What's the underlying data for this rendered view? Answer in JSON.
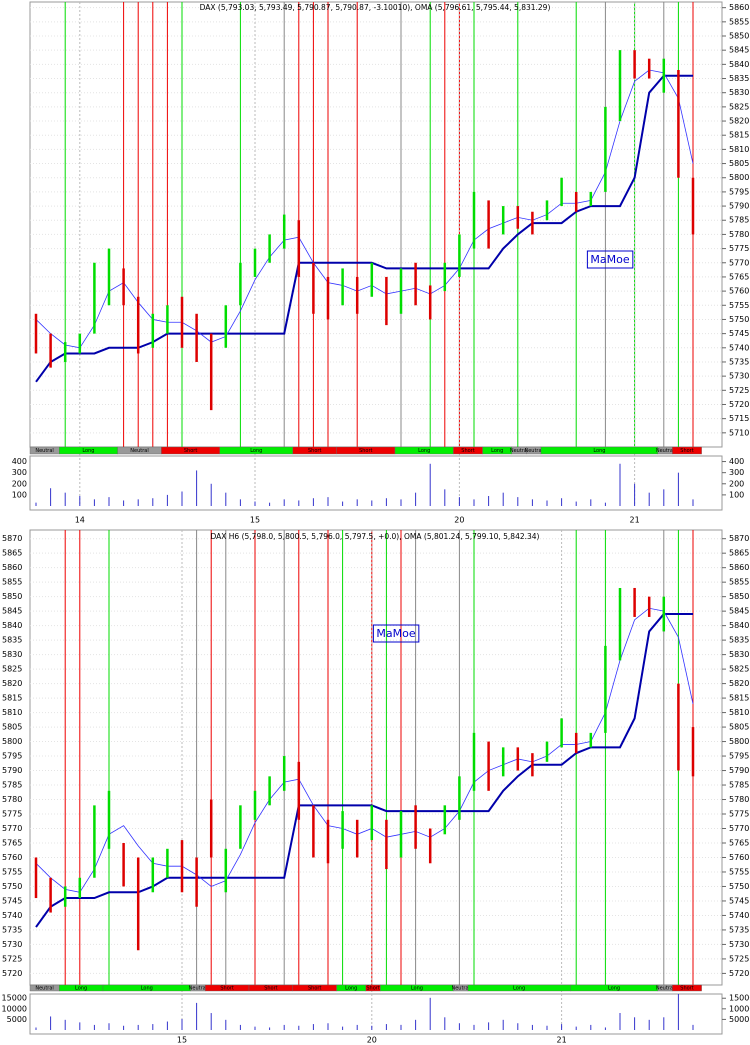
{
  "chart_data": [
    {
      "type": "ohlc",
      "title": "DAX (5,793.03, 5,793.49, 5,790.87, 5,790.87, -3.10010), OMA (5,796.61, 5,795.44, 5,831.29)",
      "annotation": "MaMoe",
      "ylim": [
        5705,
        5862
      ],
      "yticks": [
        5710,
        5715,
        5720,
        5725,
        5730,
        5735,
        5740,
        5745,
        5750,
        5755,
        5760,
        5765,
        5770,
        5775,
        5780,
        5785,
        5790,
        5795,
        5800,
        5805,
        5810,
        5815,
        5820,
        5825,
        5830,
        5835,
        5840,
        5845,
        5850,
        5855,
        5860
      ],
      "categories": [
        null,
        null,
        null,
        "14",
        null,
        null,
        null,
        null,
        null,
        null,
        null,
        null,
        null,
        null,
        null,
        "15",
        null,
        null,
        null,
        null,
        null,
        null,
        null,
        null,
        null,
        null,
        null,
        null,
        null,
        "20",
        null,
        null,
        null,
        null,
        null,
        null,
        null,
        null,
        null,
        null,
        null,
        "21",
        null,
        null,
        null,
        null
      ],
      "lows": [
        5738,
        5733,
        5735,
        5738,
        5745,
        5755,
        5755,
        5738,
        5740,
        5745,
        5740,
        5735,
        5718,
        5740,
        5755,
        5765,
        5770,
        5775,
        5765,
        5752,
        5750,
        5755,
        5752,
        5758,
        5748,
        5752,
        5755,
        5750,
        5760,
        5765,
        5775,
        5775,
        5780,
        5782,
        5780,
        5785,
        5790,
        5788,
        5790,
        5795,
        5820,
        5835,
        5835,
        5830,
        5800,
        5780
      ],
      "highs": [
        5752,
        5745,
        5742,
        5745,
        5770,
        5775,
        5768,
        5758,
        5752,
        5755,
        5758,
        5752,
        5745,
        5755,
        5770,
        5775,
        5780,
        5787,
        5785,
        5770,
        5765,
        5768,
        5765,
        5770,
        5765,
        5768,
        5770,
        5762,
        5770,
        5780,
        5795,
        5792,
        5790,
        5790,
        5788,
        5792,
        5800,
        5795,
        5795,
        5825,
        5845,
        5845,
        5842,
        5842,
        5838,
        5800
      ],
      "direction": [
        "down",
        "down",
        "up",
        "up",
        "up",
        "up",
        "down",
        "down",
        "up",
        "up",
        "down",
        "down",
        "down",
        "up",
        "up",
        "up",
        "up",
        "up",
        "down",
        "down",
        "down",
        "up",
        "down",
        "up",
        "down",
        "up",
        "down",
        "down",
        "up",
        "up",
        "up",
        "down",
        "up",
        "down",
        "down",
        "up",
        "up",
        "down",
        "up",
        "up",
        "up",
        "down",
        "down",
        "up",
        "down",
        "down"
      ],
      "up_color": "#00dd00",
      "down_color": "#dd0000",
      "fast": [
        5750,
        5745,
        5741,
        5740,
        5748,
        5760,
        5763,
        5756,
        5750,
        5749,
        5749,
        5746,
        5742,
        5744,
        5753,
        5764,
        5772,
        5778,
        5779,
        5770,
        5763,
        5762,
        5760,
        5762,
        5759,
        5760,
        5761,
        5759,
        5762,
        5768,
        5778,
        5782,
        5784,
        5786,
        5785,
        5787,
        5791,
        5791,
        5792,
        5802,
        5820,
        5834,
        5838,
        5837,
        5828,
        5805
      ],
      "fast_color": "#3333ff",
      "stop": [
        5728,
        5735,
        5738,
        5738,
        5738,
        5740,
        5740,
        5740,
        5742,
        5745,
        5745,
        5745,
        5745,
        5745,
        5745,
        5745,
        5745,
        5745,
        5770,
        5770,
        5770,
        5770,
        5770,
        5770,
        5768,
        5768,
        5768,
        5768,
        5768,
        5768,
        5768,
        5768,
        5775,
        5780,
        5784,
        5784,
        5784,
        5788,
        5790,
        5790,
        5790,
        5800,
        5830,
        5836,
        5836,
        5836
      ],
      "stop_color": "#0000aa",
      "markers": [
        {
          "at": 2,
          "color": "#00dd00"
        },
        {
          "at": 6,
          "color": "#ee0000"
        },
        {
          "at": 7,
          "color": "#ee0000"
        },
        {
          "at": 8,
          "color": "#ee0000"
        },
        {
          "at": 9,
          "color": "#ee0000"
        },
        {
          "at": 10,
          "color": "#00dd00"
        },
        {
          "at": 14,
          "color": "#00dd00"
        },
        {
          "at": 17,
          "color": "#888888"
        },
        {
          "at": 18,
          "color": "#ee0000"
        },
        {
          "at": 19,
          "color": "#ee0000"
        },
        {
          "at": 20,
          "color": "#ee0000"
        },
        {
          "at": 22,
          "color": "#ee0000"
        },
        {
          "at": 25,
          "color": "#888888"
        },
        {
          "at": 27,
          "color": "#00dd00"
        },
        {
          "at": 28,
          "color": "#ee0000"
        },
        {
          "at": 29,
          "color": "#ee0000"
        },
        {
          "at": 30,
          "color": "#00dd00"
        },
        {
          "at": 33,
          "color": "#00dd00"
        },
        {
          "at": 37,
          "color": "#00dd00"
        },
        {
          "at": 39,
          "color": "#888888"
        },
        {
          "at": 41,
          "color": "#00dd00"
        },
        {
          "at": 43,
          "color": "#888888"
        },
        {
          "at": 44,
          "color": "#00dd00"
        },
        {
          "at": 45,
          "color": "#ee0000"
        }
      ],
      "segments": [
        {
          "label": "Neutral",
          "from": 0,
          "to": 2,
          "color": "#999999"
        },
        {
          "label": "Long",
          "from": 2,
          "to": 6,
          "color": "#00ee00"
        },
        {
          "label": "Neutral",
          "from": 6,
          "to": 9,
          "color": "#999999"
        },
        {
          "label": "Short",
          "from": 9,
          "to": 13,
          "color": "#ee0000"
        },
        {
          "label": "Long",
          "from": 13,
          "to": 18,
          "color": "#00ee00"
        },
        {
          "label": "Short",
          "from": 18,
          "to": 21,
          "color": "#ee0000"
        },
        {
          "label": "Short",
          "from": 21,
          "to": 25,
          "color": "#ee0000"
        },
        {
          "label": "Long",
          "from": 25,
          "to": 29,
          "color": "#00ee00"
        },
        {
          "label": "Short",
          "from": 29,
          "to": 31,
          "color": "#ee0000"
        },
        {
          "label": "Long",
          "from": 31,
          "to": 33,
          "color": "#00ee00"
        },
        {
          "label": "Neutral",
          "from": 33,
          "to": 34,
          "color": "#999999"
        },
        {
          "label": "Neutral",
          "from": 34,
          "to": 35,
          "color": "#999999"
        },
        {
          "label": "Long",
          "from": 35,
          "to": 43,
          "color": "#00ee00"
        },
        {
          "label": "Neutral",
          "from": 43,
          "to": 44,
          "color": "#999999"
        },
        {
          "label": "Short",
          "from": 44,
          "to": 46,
          "color": "#ee0000"
        }
      ],
      "volume": {
        "values": [
          30,
          160,
          120,
          90,
          60,
          80,
          50,
          60,
          70,
          100,
          130,
          320,
          200,
          120,
          60,
          40,
          30,
          60,
          50,
          70,
          80,
          40,
          60,
          50,
          70,
          60,
          120,
          380,
          150,
          80,
          60,
          90,
          120,
          80,
          60,
          50,
          70,
          40,
          60,
          30,
          380,
          200,
          120,
          150,
          300,
          60
        ],
        "color": "#3333cc",
        "ylim": [
          0,
          450
        ],
        "yticks": [
          100,
          200,
          300,
          400
        ]
      }
    },
    {
      "type": "ohlc",
      "title": "DAX H6 (5,798.0, 5,800.5, 5,796.0, 5,797.5, +0.0), OMA (5,801.24, 5,799.10, 5,842.34)",
      "annotation": "MaMoe",
      "ylim": [
        5716,
        5873
      ],
      "yticks": [
        5720,
        5725,
        5730,
        5735,
        5740,
        5745,
        5750,
        5755,
        5760,
        5765,
        5770,
        5775,
        5780,
        5785,
        5790,
        5795,
        5800,
        5805,
        5810,
        5815,
        5820,
        5825,
        5830,
        5835,
        5840,
        5845,
        5850,
        5855,
        5860,
        5865,
        5870
      ],
      "categories": [
        null,
        null,
        null,
        null,
        null,
        null,
        null,
        null,
        null,
        null,
        "15",
        null,
        null,
        null,
        null,
        null,
        null,
        null,
        null,
        null,
        null,
        null,
        null,
        "20",
        null,
        null,
        null,
        null,
        null,
        null,
        null,
        null,
        null,
        null,
        null,
        null,
        "21",
        null,
        null,
        null,
        null,
        null,
        null,
        null,
        null,
        null
      ],
      "lows": [
        5746,
        5741,
        5743,
        5746,
        5753,
        5763,
        5750,
        5728,
        5748,
        5753,
        5748,
        5743,
        5760,
        5748,
        5763,
        5773,
        5778,
        5783,
        5773,
        5760,
        5758,
        5763,
        5760,
        5766,
        5756,
        5760,
        5763,
        5758,
        5768,
        5773,
        5783,
        5783,
        5788,
        5790,
        5788,
        5793,
        5798,
        5796,
        5798,
        5803,
        5828,
        5843,
        5843,
        5838,
        5790,
        5788
      ],
      "highs": [
        5760,
        5753,
        5750,
        5753,
        5778,
        5783,
        5765,
        5760,
        5760,
        5763,
        5766,
        5760,
        5780,
        5763,
        5778,
        5783,
        5788,
        5795,
        5793,
        5778,
        5773,
        5776,
        5773,
        5778,
        5773,
        5776,
        5778,
        5770,
        5778,
        5788,
        5803,
        5800,
        5798,
        5798,
        5796,
        5800,
        5808,
        5803,
        5803,
        5833,
        5853,
        5853,
        5850,
        5850,
        5820,
        5805
      ],
      "direction": [
        "down",
        "down",
        "up",
        "up",
        "up",
        "up",
        "down",
        "down",
        "up",
        "up",
        "down",
        "down",
        "down",
        "up",
        "up",
        "up",
        "up",
        "up",
        "down",
        "down",
        "down",
        "up",
        "down",
        "up",
        "down",
        "up",
        "down",
        "down",
        "up",
        "up",
        "up",
        "down",
        "up",
        "down",
        "down",
        "up",
        "up",
        "down",
        "up",
        "up",
        "up",
        "down",
        "down",
        "up",
        "down",
        "down"
      ],
      "up_color": "#00dd00",
      "down_color": "#dd0000",
      "fast": [
        5758,
        5753,
        5749,
        5748,
        5756,
        5768,
        5771,
        5764,
        5758,
        5757,
        5757,
        5754,
        5750,
        5752,
        5761,
        5772,
        5780,
        5786,
        5787,
        5778,
        5771,
        5770,
        5768,
        5770,
        5767,
        5768,
        5769,
        5767,
        5770,
        5776,
        5786,
        5790,
        5792,
        5794,
        5793,
        5795,
        5799,
        5799,
        5800,
        5810,
        5828,
        5842,
        5846,
        5845,
        5836,
        5813
      ],
      "fast_color": "#3333ff",
      "stop": [
        5736,
        5743,
        5746,
        5746,
        5746,
        5748,
        5748,
        5748,
        5750,
        5753,
        5753,
        5753,
        5753,
        5753,
        5753,
        5753,
        5753,
        5753,
        5778,
        5778,
        5778,
        5778,
        5778,
        5778,
        5776,
        5776,
        5776,
        5776,
        5776,
        5776,
        5776,
        5776,
        5783,
        5788,
        5792,
        5792,
        5792,
        5796,
        5798,
        5798,
        5798,
        5808,
        5838,
        5844,
        5844,
        5844
      ],
      "stop_color": "#0000aa",
      "markers": [
        {
          "at": 2,
          "color": "#ee0000"
        },
        {
          "at": 3,
          "color": "#ee0000"
        },
        {
          "at": 5,
          "color": "#00dd00"
        },
        {
          "at": 11,
          "color": "#888888"
        },
        {
          "at": 12,
          "color": "#ee0000"
        },
        {
          "at": 13,
          "color": "#888888"
        },
        {
          "at": 15,
          "color": "#ee0000"
        },
        {
          "at": 17,
          "color": "#888888"
        },
        {
          "at": 18,
          "color": "#ee0000"
        },
        {
          "at": 20,
          "color": "#ee0000"
        },
        {
          "at": 21,
          "color": "#00dd00"
        },
        {
          "at": 23,
          "color": "#ee0000"
        },
        {
          "at": 24,
          "color": "#00dd00"
        },
        {
          "at": 25,
          "color": "#ee0000"
        },
        {
          "at": 26,
          "color": "#888888"
        },
        {
          "at": 29,
          "color": "#888888"
        },
        {
          "at": 30,
          "color": "#00dd00"
        },
        {
          "at": 37,
          "color": "#00dd00"
        },
        {
          "at": 39,
          "color": "#00dd00"
        },
        {
          "at": 43,
          "color": "#888888"
        },
        {
          "at": 44,
          "color": "#00dd00"
        },
        {
          "at": 45,
          "color": "#ee0000"
        }
      ],
      "segments": [
        {
          "label": "Neutral",
          "from": 0,
          "to": 2,
          "color": "#999999"
        },
        {
          "label": "Long",
          "from": 2,
          "to": 5,
          "color": "#00ee00"
        },
        {
          "label": "Long",
          "from": 5,
          "to": 11,
          "color": "#00ee00"
        },
        {
          "label": "Neutral",
          "from": 11,
          "to": 12,
          "color": "#999999"
        },
        {
          "label": "Short",
          "from": 12,
          "to": 15,
          "color": "#ee0000"
        },
        {
          "label": "Short",
          "from": 15,
          "to": 18,
          "color": "#ee0000"
        },
        {
          "label": "Short",
          "from": 18,
          "to": 21,
          "color": "#ee0000"
        },
        {
          "label": "Long",
          "from": 21,
          "to": 23,
          "color": "#00ee00"
        },
        {
          "label": "Short",
          "from": 23,
          "to": 24,
          "color": "#ee0000"
        },
        {
          "label": "Long",
          "from": 24,
          "to": 29,
          "color": "#00ee00"
        },
        {
          "label": "Neutral",
          "from": 29,
          "to": 30,
          "color": "#999999"
        },
        {
          "label": "Long",
          "from": 30,
          "to": 37,
          "color": "#00ee00"
        },
        {
          "label": "Long",
          "from": 37,
          "to": 43,
          "color": "#00ee00"
        },
        {
          "label": "Neutral",
          "from": 43,
          "to": 44,
          "color": "#999999"
        },
        {
          "label": "Short",
          "from": 44,
          "to": 46,
          "color": "#ee0000"
        }
      ],
      "volume": {
        "values": [
          1200,
          6400,
          4800,
          3600,
          2400,
          3200,
          2000,
          2400,
          2800,
          4000,
          5200,
          12800,
          8000,
          4800,
          2400,
          1600,
          1200,
          2400,
          2000,
          2800,
          3200,
          1600,
          2400,
          2000,
          2800,
          2400,
          4800,
          15200,
          6000,
          3200,
          2400,
          3600,
          4800,
          3200,
          2400,
          2000,
          2800,
          1600,
          2400,
          1200,
          8000,
          6000,
          4800,
          6000,
          17000,
          2400
        ],
        "color": "#3333cc",
        "ylim": [
          0,
          17000
        ],
        "yticks": [
          5000,
          10000,
          15000
        ]
      }
    }
  ]
}
